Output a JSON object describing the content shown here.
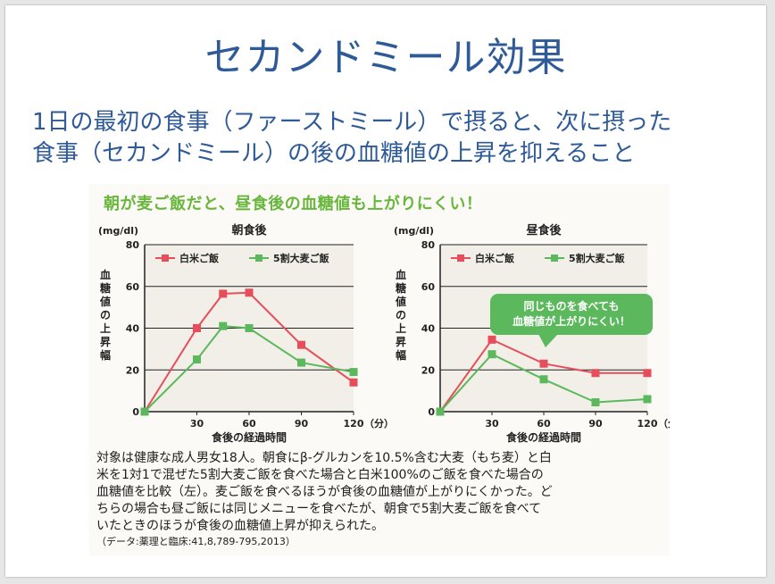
{
  "slide": {
    "title": "セカンドミール効果",
    "subtitle": [
      "1日の最初の食事（ファーストミール）で摂ると、次に摂った",
      "食事（セカンドミール）の後の血糖値の上昇を抑えること"
    ]
  },
  "figure_heading": "朝が麦ご飯だと、昼食後の血糖値も上がりにくい！",
  "chart_data": [
    {
      "type": "line",
      "title": "朝食後",
      "ylabel": "血糖値の上昇幅",
      "yunit": "(mg/dl)",
      "xlabel": "食後の経過時間",
      "xunit": "（分）",
      "ylim": [
        0,
        80
      ],
      "yticks": [
        0,
        20,
        40,
        60,
        80
      ],
      "xticks": [
        30,
        60,
        90,
        120
      ],
      "grid": true,
      "legend_position": "top-left",
      "series": [
        {
          "name": "白米ご飯",
          "color": "#e64e5b",
          "points": [
            [
              0,
              0
            ],
            [
              30,
              40
            ],
            [
              45,
              56.5
            ],
            [
              60,
              57
            ],
            [
              90,
              32
            ],
            [
              120,
              14
            ]
          ]
        },
        {
          "name": "5割大麦ご飯",
          "color": "#5cb85c",
          "points": [
            [
              0,
              0
            ],
            [
              30,
              25
            ],
            [
              45,
              41
            ],
            [
              60,
              40
            ],
            [
              90,
              23.5
            ],
            [
              120,
              19
            ]
          ]
        }
      ]
    },
    {
      "type": "line",
      "title": "昼食後",
      "ylabel": "血糖値の上昇幅",
      "yunit": "(mg/dl)",
      "xlabel": "食後の経過時間",
      "xunit": "（分）",
      "ylim": [
        0,
        80
      ],
      "yticks": [
        0,
        20,
        40,
        60,
        80
      ],
      "xticks": [
        30,
        60,
        90,
        120
      ],
      "grid": true,
      "legend_position": "top-left",
      "annotation": [
        "同じものを食べても",
        "血糖値が上がりにくい！"
      ],
      "series": [
        {
          "name": "白米ご飯",
          "color": "#e64e5b",
          "points": [
            [
              0,
              0
            ],
            [
              30,
              34.5
            ],
            [
              60,
              23
            ],
            [
              90,
              18.5
            ],
            [
              120,
              18.5
            ]
          ]
        },
        {
          "name": "5割大麦ご飯",
          "color": "#5cb85c",
          "points": [
            [
              0,
              0
            ],
            [
              30,
              27.5
            ],
            [
              60,
              15.5
            ],
            [
              90,
              4.5
            ],
            [
              120,
              6
            ]
          ]
        }
      ]
    }
  ],
  "caption": [
    "対象は健康な成人男女18人。朝食にβ-グルカンを10.5%含む大麦（もち麦）と白",
    "米を1対1で混ぜた5割大麦ご飯を食べた場合と白米100%のご飯を食べた場合の",
    "血糖値を比較（左）。麦ご飯を食べるほうが食後の血糖値が上がりにくかった。ど",
    "ちらの場合も昼ご飯には同じメニューを食べたが、朝食で5割大麦ご飯を食べて",
    "いたときのほうが食後の血糖値上昇が抑えられた。"
  ],
  "source": "（データ:薬理と臨床:41,8,789-795,2013）"
}
